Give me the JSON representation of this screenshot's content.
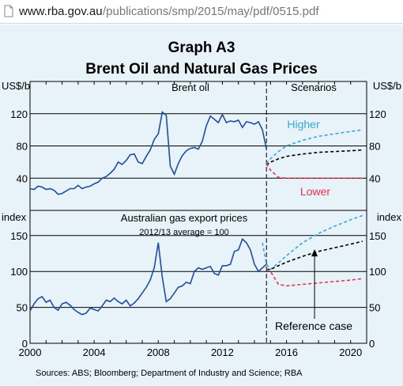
{
  "browser": {
    "url_host": "www.rba.gov.au",
    "url_path": "/publications/smp/2015/may/pdf/0515.pdf"
  },
  "chart": {
    "heading": "Graph A3",
    "title": "Brent Oil and Natural Gas Prices",
    "source": "Sources:   ABS; Bloomberg; Department of Industry and Science; RBA",
    "colors": {
      "history": "#1f4e9c",
      "higher": "#35a8dc",
      "lower": "#e8324a",
      "reference": "#000000",
      "background": "#e7f2f9"
    }
  },
  "chart_data": [
    {
      "type": "line",
      "title": "Brent oil",
      "section_label": "Scenarios",
      "ylabel_left": "US$/b",
      "ylabel_right": "US$/b",
      "ylim": [
        0,
        160
      ],
      "yticks": [
        40,
        80,
        120
      ],
      "xlim": [
        2000,
        2021
      ],
      "series": [
        {
          "name": "Brent oil",
          "style": "solid",
          "x": [
            2000,
            2000.25,
            2000.5,
            2000.75,
            2001,
            2001.25,
            2001.5,
            2001.75,
            2002,
            2002.25,
            2002.5,
            2002.75,
            2003,
            2003.25,
            2003.5,
            2003.75,
            2004,
            2004.25,
            2004.5,
            2004.75,
            2005,
            2005.25,
            2005.5,
            2005.75,
            2006,
            2006.25,
            2006.5,
            2006.75,
            2007,
            2007.25,
            2007.5,
            2007.75,
            2008,
            2008.25,
            2008.5,
            2008.75,
            2009,
            2009.25,
            2009.5,
            2009.75,
            2010,
            2010.25,
            2010.5,
            2010.75,
            2011,
            2011.25,
            2011.5,
            2011.75,
            2012,
            2012.25,
            2012.5,
            2012.75,
            2013,
            2013.25,
            2013.5,
            2013.75,
            2014,
            2014.25,
            2014.5,
            2014.75
          ],
          "y": [
            27,
            26,
            30,
            29,
            26,
            27,
            25,
            20,
            21,
            24,
            27,
            27,
            31,
            27,
            29,
            30,
            33,
            35,
            40,
            42,
            46,
            51,
            60,
            57,
            62,
            69,
            70,
            60,
            58,
            67,
            75,
            88,
            95,
            122,
            118,
            55,
            45,
            58,
            68,
            74,
            77,
            78,
            76,
            86,
            105,
            117,
            113,
            109,
            119,
            109,
            111,
            110,
            112,
            103,
            110,
            109,
            107,
            110,
            100,
            76
          ]
        },
        {
          "name": "Higher",
          "style": "dashed",
          "x": [
            2014.75,
            2015,
            2015.5,
            2016,
            2017,
            2018,
            2019,
            2020,
            2020.75
          ],
          "y": [
            58,
            64,
            73,
            80,
            87,
            92,
            95,
            98,
            100
          ]
        },
        {
          "name": "",
          "style": "dashed",
          "x": [
            2014.75,
            2015,
            2015.5,
            2016,
            2017,
            2018,
            2019,
            2020,
            2020.75
          ],
          "y": [
            56,
            60,
            64,
            67,
            70,
            72,
            73,
            74,
            75
          ]
        },
        {
          "name": "Lower",
          "style": "dashed",
          "x": [
            2014.75,
            2015,
            2015.5,
            2016,
            2017,
            2018,
            2019,
            2020,
            2020.75
          ],
          "y": [
            58,
            50,
            41,
            40,
            40,
            40,
            40,
            40,
            40
          ]
        }
      ]
    },
    {
      "type": "line",
      "title": "Australian gas export prices",
      "subtitle": "2012/13 average = 100",
      "ylabel_left": "index",
      "ylabel_right": "index",
      "ylim": [
        0,
        185
      ],
      "yticks": [
        0,
        50,
        100,
        150
      ],
      "xlim": [
        2000,
        2021
      ],
      "xticks": [
        2000,
        2004,
        2008,
        2012,
        2016,
        2020
      ],
      "annotation": "Reference case",
      "series": [
        {
          "name": "Australian gas export prices",
          "style": "solid",
          "x": [
            2000,
            2000.25,
            2000.5,
            2000.75,
            2001,
            2001.25,
            2001.5,
            2001.75,
            2002,
            2002.25,
            2002.5,
            2002.75,
            2003,
            2003.25,
            2003.5,
            2003.75,
            2004,
            2004.25,
            2004.5,
            2004.75,
            2005,
            2005.25,
            2005.5,
            2005.75,
            2006,
            2006.25,
            2006.5,
            2006.75,
            2007,
            2007.25,
            2007.5,
            2007.75,
            2008,
            2008.25,
            2008.5,
            2008.75,
            2009,
            2009.25,
            2009.5,
            2009.75,
            2010,
            2010.25,
            2010.5,
            2010.75,
            2011,
            2011.25,
            2011.5,
            2011.75,
            2012,
            2012.25,
            2012.5,
            2012.75,
            2013,
            2013.25,
            2013.5,
            2013.75,
            2014,
            2014.25,
            2014.5,
            2014.75
          ],
          "y": [
            45,
            55,
            62,
            65,
            57,
            60,
            50,
            46,
            55,
            57,
            53,
            47,
            43,
            40,
            42,
            49,
            47,
            45,
            52,
            60,
            58,
            63,
            58,
            55,
            60,
            52,
            56,
            62,
            70,
            78,
            88,
            105,
            140,
            92,
            58,
            62,
            70,
            78,
            80,
            85,
            83,
            100,
            105,
            103,
            105,
            107,
            97,
            95,
            108,
            108,
            110,
            128,
            130,
            145,
            140,
            130,
            110,
            100,
            105,
            110
          ]
        },
        {
          "name": "",
          "style": "dashed",
          "x": [
            2014.5,
            2014.75,
            2015,
            2015.5,
            2016,
            2017,
            2018,
            2019,
            2020,
            2020.75
          ],
          "y": [
            140,
            110,
            103,
            112,
            122,
            140,
            153,
            163,
            172,
            178
          ]
        },
        {
          "name": "Reference case",
          "style": "dashed",
          "x": [
            2014.75,
            2015,
            2015.5,
            2016,
            2017,
            2018,
            2019,
            2020,
            2020.75
          ],
          "y": [
            103,
            103,
            108,
            113,
            121,
            128,
            133,
            138,
            142
          ]
        },
        {
          "name": "",
          "style": "dashed",
          "x": [
            2014.75,
            2015,
            2015.5,
            2016,
            2017,
            2018,
            2019,
            2020,
            2020.75
          ],
          "y": [
            103,
            100,
            82,
            80,
            82,
            84,
            86,
            88,
            90
          ]
        }
      ]
    }
  ]
}
